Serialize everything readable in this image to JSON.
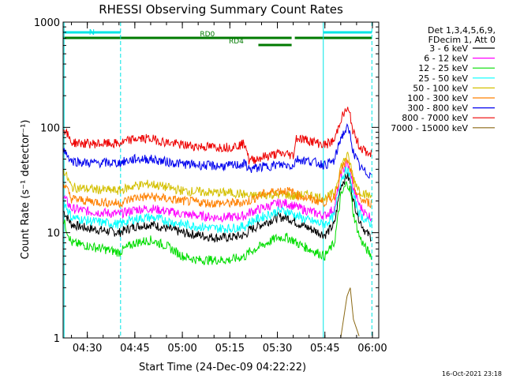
{
  "chart_data": {
    "type": "line",
    "title": "RHESSI Observing Summary Count Rates",
    "xlabel": "Start Time (24-Dec-09 04:22:22)",
    "ylabel": "Count Rate (s⁻¹ detector⁻¹)",
    "y_scale": "log",
    "ylim": [
      1,
      1000
    ],
    "xlim": [
      "04:22:22",
      "06:02:00"
    ],
    "x_ticks": [
      "04:30",
      "04:45",
      "05:00",
      "05:15",
      "05:30",
      "05:45",
      "06:00"
    ],
    "y_ticks": [
      "1",
      "10",
      "100",
      "1000"
    ],
    "timestamp": "16-Oct-2021 23:18",
    "legend": {
      "placement": "right",
      "header": [
        "Det 1,3,4,5,6,9,",
        "FDecim 1, Att 0"
      ]
    },
    "bars": [
      {
        "label": "N",
        "start": "04:22:22",
        "end": "04:40:30",
        "color": "#00e5e5"
      },
      {
        "label": "",
        "start": "05:44:30",
        "end": "05:59:50",
        "color": "#00e5e5"
      }
    ],
    "flag_bars": [
      {
        "label": "RD0",
        "start": "04:22:22",
        "end": "05:34:30",
        "row": 1,
        "color": "#007a00"
      },
      {
        "label": "",
        "start": "05:35:30",
        "end": "05:59:50",
        "row": 1,
        "color": "#007a00"
      },
      {
        "label": "RD4",
        "start": "05:24:00",
        "end": "05:34:30",
        "row": 2,
        "color": "#007a00"
      }
    ],
    "vlines": [
      {
        "time": "04:22:40",
        "style": "solid",
        "color": "#00e5e5"
      },
      {
        "time": "04:40:30",
        "style": "dashed",
        "color": "#00e5e5"
      },
      {
        "time": "05:44:30",
        "style": "solid",
        "color": "#00e5e5"
      },
      {
        "time": "05:59:50",
        "style": "dashed",
        "color": "#00e5e5"
      }
    ],
    "x": [
      "04:22:30",
      "04:25",
      "04:30",
      "04:35",
      "04:40",
      "04:45",
      "04:50",
      "04:55",
      "05:00",
      "05:05",
      "05:10",
      "05:15",
      "05:20",
      "05:21",
      "05:25",
      "05:30",
      "05:33",
      "05:35",
      "05:36",
      "05:40",
      "05:45",
      "05:48",
      "05:50",
      "05:52",
      "05:53",
      "05:54",
      "05:56",
      "05:58",
      "05:59:50"
    ],
    "series": [
      {
        "name": "3 - 6 keV",
        "color": "#000000",
        "values": [
          16,
          12,
          11,
          10.5,
          10,
          11.5,
          12,
          11,
          10,
          9.5,
          9,
          9,
          9.5,
          10.5,
          12,
          14,
          14,
          13,
          12.5,
          11,
          9.5,
          12,
          28,
          35,
          30,
          20,
          13,
          10,
          9
        ]
      },
      {
        "name": "6 - 12 keV",
        "color": "#ff00ff",
        "values": [
          22,
          17,
          16,
          15.5,
          15,
          16.5,
          17,
          16,
          15,
          14.5,
          14,
          14,
          14.5,
          15.5,
          17,
          19,
          19,
          18,
          17.5,
          16,
          14.5,
          17,
          36,
          45,
          38,
          26,
          18,
          15,
          14
        ]
      },
      {
        "name": "12 - 25 keV",
        "color": "#00dd00",
        "values": [
          13,
          8,
          7.5,
          7,
          6.5,
          8,
          8.5,
          7.5,
          6,
          5.5,
          5.5,
          5.5,
          6,
          6.5,
          7.5,
          9,
          9,
          8.5,
          8,
          7,
          6,
          8,
          22,
          30,
          25,
          15,
          9,
          7,
          6
        ]
      },
      {
        "name": "25 - 50 keV",
        "color": "#00ffff",
        "values": [
          20,
          14,
          13,
          12.5,
          12,
          13.5,
          14,
          13,
          12,
          11.5,
          11,
          11,
          11.5,
          12.5,
          14,
          16,
          16,
          15,
          14.5,
          13,
          12,
          14.5,
          32,
          40,
          33,
          22,
          15,
          13,
          12
        ]
      },
      {
        "name": "50 - 100 keV",
        "color": "#d4c000",
        "values": [
          40,
          27,
          26,
          25.5,
          25,
          28,
          29,
          27,
          25,
          24.5,
          24,
          24,
          23,
          22,
          23,
          23,
          23,
          22,
          22.5,
          23,
          21,
          24,
          42,
          55,
          45,
          33,
          25,
          23,
          22
        ]
      },
      {
        "name": "100 - 300 keV",
        "color": "#ff8000",
        "values": [
          30,
          21,
          20,
          19.5,
          19,
          21.5,
          22,
          21,
          20,
          19.5,
          19,
          19,
          19.5,
          20,
          23,
          25,
          25,
          24,
          23,
          21,
          19.5,
          22,
          38,
          48,
          40,
          28,
          21,
          19.5,
          19
        ]
      },
      {
        "name": "300 - 800 keV",
        "color": "#0000ee",
        "values": [
          62,
          48,
          46,
          46,
          46,
          50,
          50,
          47,
          45,
          44,
          43,
          43,
          45,
          40,
          42,
          44,
          44,
          43,
          50,
          48,
          44,
          48,
          80,
          98,
          85,
          58,
          42,
          37,
          35
        ]
      },
      {
        "name": "800 - 7000 keV",
        "color": "#ee0000",
        "values": [
          100,
          72,
          70,
          70,
          70,
          78,
          78,
          72,
          68,
          66,
          65,
          65,
          70,
          48,
          52,
          56,
          56,
          54,
          80,
          75,
          68,
          75,
          120,
          150,
          128,
          88,
          66,
          58,
          55
        ]
      },
      {
        "name": "7000 - 15000 keV",
        "color": "#8b6914",
        "values": [
          null,
          null,
          null,
          null,
          null,
          null,
          null,
          null,
          null,
          null,
          null,
          null,
          null,
          null,
          null,
          null,
          null,
          null,
          null,
          null,
          null,
          null,
          1,
          2.5,
          3,
          1.5,
          1,
          null,
          null
        ]
      }
    ]
  }
}
